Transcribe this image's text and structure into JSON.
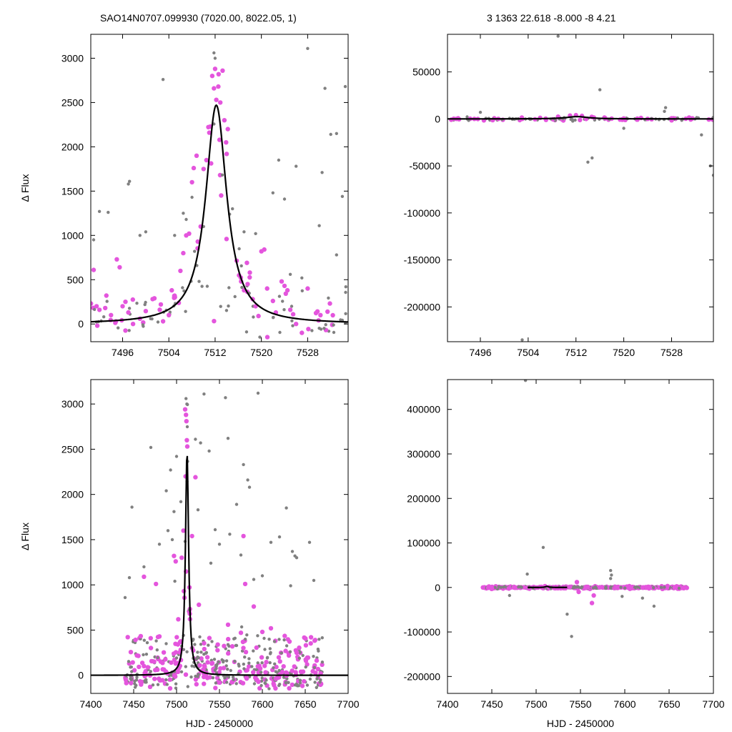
{
  "header": {
    "left": "SAO14N0707.099930 (7020.00, 8022.05,    1)",
    "right": "3   1363   22.618   -8.000   -8   4.21"
  },
  "colors": {
    "gray": "#808080",
    "magenta": "#e455dd",
    "model": "#000000"
  },
  "chart_data": [
    {
      "type": "scatter",
      "position": "top-left",
      "xlabel": "",
      "ylabel": "Δ Flux",
      "xlim": [
        7490.5,
        7535.0
      ],
      "ylim": [
        -200,
        3270
      ],
      "xticks": [
        7496,
        7504,
        7512,
        7520,
        7528
      ],
      "yticks": [
        0,
        500,
        1000,
        1500,
        2000,
        2500,
        3000
      ],
      "model": {
        "kind": "lorentz",
        "peak": 2470,
        "center": 7512.2,
        "width": 2.2
      },
      "scatter_seed": 11,
      "series": [
        {
          "color": "gray",
          "size": 2.2,
          "points": [
            [
              7491,
              950
            ],
            [
              7492,
              1270
            ],
            [
              7493.5,
              1260
            ],
            [
              7497,
              1580
            ],
            [
              7497.2,
              1610
            ],
            [
              7499,
              1000
            ],
            [
              7500,
              1040
            ],
            [
              7503,
              2760
            ],
            [
              7505,
              1000
            ],
            [
              7506.5,
              1250
            ],
            [
              7507,
              1180
            ],
            [
              7508,
              1430
            ],
            [
              7510,
              1100
            ],
            [
              7511.8,
              3060
            ],
            [
              7512,
              3000
            ],
            [
              7514.5,
              1240
            ],
            [
              7515,
              1300
            ],
            [
              7517,
              1040
            ],
            [
              7519,
              1020
            ],
            [
              7522,
              1480
            ],
            [
              7523,
              1850
            ],
            [
              7524,
              1410
            ],
            [
              7526,
              1780
            ],
            [
              7528,
              3110
            ],
            [
              7530,
              1110
            ],
            [
              7530.5,
              1710
            ],
            [
              7531,
              2660
            ],
            [
              7532,
              2140
            ],
            [
              7533,
              2150
            ],
            [
              7534,
              1440
            ],
            [
              7534.5,
              2680
            ],
            [
              7527,
              520
            ],
            [
              7525,
              560
            ],
            [
              7533,
              780
            ]
          ]
        },
        {
          "color": "magenta",
          "size": 3.2,
          "points": [
            [
              7491,
              610
            ],
            [
              7491.5,
              200
            ],
            [
              7492,
              160
            ],
            [
              7493,
              180
            ],
            [
              7494,
              100
            ],
            [
              7495,
              730
            ],
            [
              7495.5,
              640
            ],
            [
              7496,
              200
            ],
            [
              7496.5,
              250
            ],
            [
              7497,
              130
            ],
            [
              7497.8,
              0
            ],
            [
              7499,
              60
            ],
            [
              7501.5,
              290
            ],
            [
              7503,
              30
            ],
            [
              7504,
              100
            ],
            [
              7504.5,
              380
            ],
            [
              7505,
              320
            ],
            [
              7506,
              600
            ],
            [
              7506.5,
              800
            ],
            [
              7507,
              1000
            ],
            [
              7507.5,
              1020
            ],
            [
              7508,
              1600
            ],
            [
              7508.3,
              1760
            ],
            [
              7508.8,
              1900
            ],
            [
              7509,
              930
            ],
            [
              7509.5,
              1100
            ],
            [
              7510,
              1750
            ],
            [
              7510.5,
              1850
            ],
            [
              7511,
              2160
            ],
            [
              7511.2,
              2230
            ],
            [
              7511.5,
              2800
            ],
            [
              7511.8,
              2660
            ],
            [
              7512,
              2880
            ],
            [
              7512.2,
              2530
            ],
            [
              7512.6,
              2820
            ],
            [
              7512.9,
              2500
            ],
            [
              7513.3,
              2860
            ],
            [
              7513.6,
              2300
            ],
            [
              7513.9,
              2050
            ],
            [
              7514,
              1920
            ],
            [
              7514.2,
              2200
            ],
            [
              7516.5,
              480
            ],
            [
              7517,
              380
            ],
            [
              7517.5,
              690
            ],
            [
              7518,
              580
            ],
            [
              7518.5,
              280
            ],
            [
              7519,
              200
            ],
            [
              7519.5,
              90
            ],
            [
              7520,
              820
            ],
            [
              7520.5,
              840
            ],
            [
              7521,
              400
            ],
            [
              7522,
              260
            ],
            [
              7522.5,
              130
            ],
            [
              7523.5,
              480
            ],
            [
              7524,
              430
            ],
            [
              7524.5,
              380
            ],
            [
              7525,
              160
            ],
            [
              7525.5,
              110
            ],
            [
              7526,
              0
            ],
            [
              7527,
              -100
            ],
            [
              7528,
              400
            ]
          ]
        }
      ]
    },
    {
      "type": "scatter",
      "position": "top-right",
      "xlabel": "",
      "ylabel": "",
      "xlim": [
        7490.5,
        7535.0
      ],
      "ylim": [
        -237000,
        90000
      ],
      "xticks": [
        7496,
        7504,
        7512,
        7520,
        7528
      ],
      "yticks": [
        -200000,
        -150000,
        -100000,
        -50000,
        0,
        50000
      ],
      "model": {
        "kind": "lorentz",
        "peak": 2470,
        "center": 7512.2,
        "width": 2.2
      },
      "scatter_seed": 23,
      "series": [
        {
          "color": "gray",
          "size": 2.2,
          "points": [
            [
              7503,
              -235000
            ],
            [
              7509,
              88000
            ],
            [
              7514,
              -46000
            ],
            [
              7514.7,
              -41500
            ],
            [
              7516,
              31000
            ],
            [
              7527,
              12000
            ],
            [
              7526.8,
              8000
            ],
            [
              7535,
              -60000
            ],
            [
              7534.5,
              -50000
            ],
            [
              7496,
              7000
            ],
            [
              7533,
              -17000
            ],
            [
              7520,
              -10000
            ]
          ]
        },
        {
          "color": "magenta",
          "size": 3.2,
          "points": [
            [
              7492,
              0
            ],
            [
              7495,
              0
            ],
            [
              7499,
              0
            ],
            [
              7503,
              0
            ],
            [
              7506,
              1200
            ],
            [
              7509,
              2400
            ],
            [
              7511,
              3500
            ],
            [
              7512,
              4000
            ],
            [
              7513,
              3200
            ],
            [
              7515,
              1500
            ],
            [
              7520,
              500
            ],
            [
              7524,
              0
            ],
            [
              7528,
              -1500
            ]
          ]
        }
      ]
    },
    {
      "type": "scatter",
      "position": "bottom-left",
      "xlabel": "HJD - 2450000",
      "ylabel": "Δ Flux",
      "xlim": [
        7400,
        7700
      ],
      "ylim": [
        -200,
        3270
      ],
      "xticks": [
        7400,
        7450,
        7500,
        7550,
        7600,
        7650,
        7700
      ],
      "yticks": [
        0,
        500,
        1000,
        1500,
        2000,
        2500,
        3000
      ],
      "model": {
        "kind": "lorentz",
        "peak": 2470,
        "center": 7512.2,
        "width": 2.2
      },
      "scatter_seed": 37,
      "series": [
        {
          "color": "gray",
          "size": 2.2,
          "points": [
            [
              7440,
              860
            ],
            [
              7445,
              1080
            ],
            [
              7448,
              1860
            ],
            [
              7462,
              1200
            ],
            [
              7470,
              2520
            ],
            [
              7480,
              1450
            ],
            [
              7488,
              2040
            ],
            [
              7490,
              1600
            ],
            [
              7493,
              2270
            ],
            [
              7495,
              1500
            ],
            [
              7497,
              1810
            ],
            [
              7498,
              1040
            ],
            [
              7500,
              2420
            ],
            [
              7505,
              1920
            ],
            [
              7511,
              3060
            ],
            [
              7512,
              3000
            ],
            [
              7522,
              2610
            ],
            [
              7525,
              1830
            ],
            [
              7528,
              2570
            ],
            [
              7532,
              3110
            ],
            [
              7538,
              2480
            ],
            [
              7540,
              1240
            ],
            [
              7545,
              1610
            ],
            [
              7550,
              1450
            ],
            [
              7557,
              3070
            ],
            [
              7560,
              2620
            ],
            [
              7562,
              1560
            ],
            [
              7570,
              1890
            ],
            [
              7575,
              1330
            ],
            [
              7578,
              2330
            ],
            [
              7583,
              2160
            ],
            [
              7585,
              2080
            ],
            [
              7590,
              1060
            ],
            [
              7595,
              3120
            ],
            [
              7600,
              1100
            ],
            [
              7610,
              1470
            ],
            [
              7620,
              1530
            ],
            [
              7628,
              1850
            ],
            [
              7635,
              1370
            ],
            [
              7638,
              1320
            ],
            [
              7640,
              1300
            ],
            [
              7633,
              990
            ],
            [
              7655,
              1470
            ],
            [
              7660,
              1050
            ]
          ]
        },
        {
          "color": "magenta",
          "size": 3.2,
          "points": [
            [
              7462,
              1090
            ],
            [
              7476,
              1010
            ],
            [
              7480,
              430
            ],
            [
              7497,
              1320
            ],
            [
              7499,
              1260
            ],
            [
              7502,
              620
            ],
            [
              7510,
              2940
            ],
            [
              7511,
              2880
            ],
            [
              7511.5,
              2810
            ],
            [
              7512,
              2600
            ],
            [
              7512.5,
              2530
            ],
            [
              7510.5,
              2200
            ],
            [
              7508,
              1600
            ],
            [
              7506,
              1300
            ],
            [
              7522,
              2190
            ],
            [
              7518,
              1540
            ],
            [
              7526,
              780
            ],
            [
              7548,
              340
            ],
            [
              7560,
              560
            ],
            [
              7565,
              320
            ],
            [
              7575,
              470
            ],
            [
              7578,
              1540
            ],
            [
              7580,
              1010
            ],
            [
              7590,
              760
            ],
            [
              7600,
              480
            ],
            [
              7610,
              520
            ],
            [
              7640,
              250
            ],
            [
              7668,
              20
            ]
          ]
        }
      ]
    },
    {
      "type": "scatter",
      "position": "bottom-right",
      "xlabel": "HJD - 2450000",
      "ylabel": "",
      "xlim": [
        7400,
        7700
      ],
      "ylim": [
        -238000,
        467000
      ],
      "xticks": [
        7400,
        7450,
        7500,
        7550,
        7600,
        7650,
        7700
      ],
      "yticks": [
        -200000,
        -100000,
        0,
        100000,
        200000,
        300000,
        400000
      ],
      "model": {
        "kind": "lorentz",
        "peak": 2470,
        "center": 7512.2,
        "width": 2.2,
        "xrange": [
          7490.5,
          7535.0
        ]
      },
      "scatter_seed": 53,
      "series": [
        {
          "color": "gray",
          "size": 2.2,
          "points": [
            [
              7488,
              465000
            ],
            [
              7508,
              90000
            ],
            [
              7540,
              -110000
            ],
            [
              7535,
              -60000
            ],
            [
              7584,
              38000
            ],
            [
              7585,
              28000
            ],
            [
              7584,
              20000
            ],
            [
              7597,
              -20000
            ],
            [
              7620,
              -24000
            ],
            [
              7633,
              -42000
            ],
            [
              7490,
              30000
            ],
            [
              7470,
              -18000
            ]
          ]
        },
        {
          "color": "magenta",
          "size": 3.2,
          "points": [
            [
              7440,
              0
            ],
            [
              7450,
              -1500
            ],
            [
              7500,
              0
            ],
            [
              7510,
              3000
            ],
            [
              7520,
              -1000
            ],
            [
              7546,
              12000
            ],
            [
              7548,
              -10000
            ],
            [
              7563,
              -35000
            ],
            [
              7565,
              -18000
            ],
            [
              7590,
              0
            ],
            [
              7620,
              0
            ],
            [
              7670,
              -1000
            ]
          ]
        }
      ]
    }
  ]
}
